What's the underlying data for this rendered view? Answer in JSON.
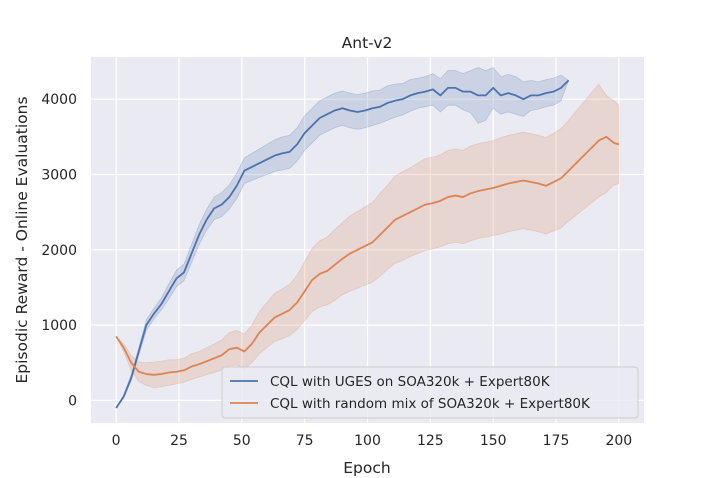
{
  "chart_data": {
    "type": "line",
    "title": "Ant-v2",
    "xlabel": "Epoch",
    "ylabel": "Episodic Reward - Online Evaluations",
    "xlim": [
      -10,
      210
    ],
    "ylim": [
      -300,
      4560
    ],
    "xticks": [
      0,
      25,
      50,
      75,
      100,
      125,
      150,
      175,
      200
    ],
    "yticks": [
      0,
      1000,
      2000,
      3000,
      4000
    ],
    "grid": true,
    "background": "#eaeaf2",
    "legend_position": "lower right",
    "series": [
      {
        "name": "CQL with UGES on SOA320k + Expert80K",
        "color": "#4c72b0",
        "x": [
          0,
          3,
          6,
          9,
          12,
          15,
          18,
          21,
          24,
          27,
          30,
          33,
          36,
          39,
          42,
          45,
          48,
          51,
          54,
          57,
          60,
          63,
          66,
          69,
          72,
          75,
          78,
          81,
          84,
          87,
          90,
          93,
          96,
          99,
          102,
          105,
          108,
          111,
          114,
          117,
          120,
          123,
          126,
          129,
          132,
          135,
          138,
          141,
          144,
          147,
          150,
          153,
          156,
          159,
          162,
          165,
          168,
          171,
          174,
          177,
          180
        ],
        "y": [
          -100,
          50,
          300,
          650,
          1000,
          1150,
          1280,
          1450,
          1620,
          1700,
          1950,
          2200,
          2400,
          2550,
          2600,
          2700,
          2850,
          3050,
          3100,
          3150,
          3200,
          3250,
          3280,
          3300,
          3400,
          3550,
          3650,
          3750,
          3800,
          3850,
          3880,
          3850,
          3830,
          3850,
          3880,
          3900,
          3950,
          3980,
          4000,
          4050,
          4080,
          4100,
          4130,
          4050,
          4150,
          4150,
          4100,
          4100,
          4050,
          4050,
          4150,
          4050,
          4080,
          4050,
          4000,
          4050,
          4050,
          4080,
          4100,
          4150,
          4250
        ],
        "lower": [
          -100,
          30,
          260,
          600,
          930,
          1080,
          1200,
          1350,
          1510,
          1590,
          1830,
          2070,
          2260,
          2400,
          2440,
          2540,
          2680,
          2880,
          2920,
          2960,
          3000,
          3040,
          3060,
          3080,
          3180,
          3320,
          3420,
          3520,
          3570,
          3620,
          3650,
          3620,
          3600,
          3620,
          3650,
          3680,
          3720,
          3760,
          3790,
          3840,
          3880,
          3900,
          3920,
          3830,
          3920,
          3920,
          3860,
          3820,
          3680,
          3720,
          3880,
          3800,
          3830,
          3800,
          3770,
          3850,
          3870,
          3900,
          3920,
          3980,
          4250
        ],
        "upper": [
          -100,
          70,
          340,
          700,
          1070,
          1220,
          1360,
          1550,
          1730,
          1810,
          2070,
          2330,
          2540,
          2700,
          2760,
          2860,
          3020,
          3220,
          3280,
          3340,
          3400,
          3460,
          3500,
          3520,
          3620,
          3780,
          3880,
          3980,
          4030,
          4080,
          4110,
          4080,
          4060,
          4080,
          4110,
          4120,
          4180,
          4200,
          4210,
          4260,
          4280,
          4300,
          4340,
          4270,
          4380,
          4380,
          4340,
          4380,
          4420,
          4380,
          4420,
          4300,
          4330,
          4300,
          4230,
          4250,
          4230,
          4260,
          4280,
          4320,
          4250
        ]
      },
      {
        "name": "CQL with random mix of SOA320k + Expert80K",
        "color": "#dd8452",
        "x": [
          0,
          3,
          6,
          9,
          12,
          15,
          18,
          21,
          24,
          27,
          30,
          33,
          36,
          39,
          42,
          45,
          48,
          51,
          54,
          57,
          60,
          63,
          66,
          69,
          72,
          75,
          78,
          81,
          84,
          87,
          90,
          93,
          96,
          99,
          102,
          105,
          108,
          111,
          114,
          117,
          120,
          123,
          126,
          129,
          132,
          135,
          138,
          141,
          144,
          147,
          150,
          153,
          156,
          159,
          162,
          165,
          168,
          171,
          174,
          177,
          180,
          183,
          186,
          189,
          192,
          195,
          198,
          200
        ],
        "y": [
          850,
          700,
          500,
          380,
          350,
          340,
          350,
          370,
          380,
          400,
          450,
          480,
          520,
          560,
          600,
          680,
          700,
          650,
          750,
          900,
          1000,
          1100,
          1150,
          1200,
          1300,
          1450,
          1600,
          1680,
          1720,
          1800,
          1880,
          1950,
          2000,
          2050,
          2100,
          2200,
          2300,
          2400,
          2450,
          2500,
          2550,
          2600,
          2620,
          2650,
          2700,
          2720,
          2700,
          2750,
          2780,
          2800,
          2820,
          2850,
          2880,
          2900,
          2920,
          2900,
          2880,
          2850,
          2900,
          2950,
          3050,
          3150,
          3250,
          3350,
          3450,
          3500,
          3420,
          3400
        ],
        "lower": [
          850,
          650,
          400,
          250,
          200,
          170,
          180,
          200,
          220,
          240,
          280,
          310,
          340,
          370,
          400,
          460,
          470,
          420,
          500,
          620,
          700,
          780,
          820,
          860,
          940,
          1060,
          1180,
          1240,
          1270,
          1330,
          1400,
          1450,
          1490,
          1530,
          1570,
          1650,
          1740,
          1820,
          1860,
          1910,
          1950,
          1990,
          2010,
          2040,
          2080,
          2100,
          2080,
          2120,
          2150,
          2170,
          2190,
          2210,
          2240,
          2260,
          2280,
          2260,
          2240,
          2210,
          2250,
          2290,
          2380,
          2460,
          2540,
          2620,
          2700,
          2760,
          2860,
          2880
        ],
        "upper": [
          850,
          750,
          600,
          510,
          500,
          510,
          520,
          540,
          540,
          560,
          620,
          650,
          700,
          750,
          800,
          900,
          930,
          880,
          1000,
          1180,
          1300,
          1420,
          1480,
          1540,
          1660,
          1840,
          2020,
          2120,
          2170,
          2270,
          2360,
          2450,
          2510,
          2570,
          2630,
          2750,
          2860,
          2980,
          3040,
          3090,
          3150,
          3210,
          3230,
          3260,
          3320,
          3340,
          3320,
          3380,
          3410,
          3430,
          3450,
          3490,
          3520,
          3540,
          3560,
          3540,
          3520,
          3490,
          3550,
          3610,
          3720,
          3840,
          3960,
          4080,
          4200,
          4050,
          3980,
          3920
        ]
      }
    ]
  }
}
